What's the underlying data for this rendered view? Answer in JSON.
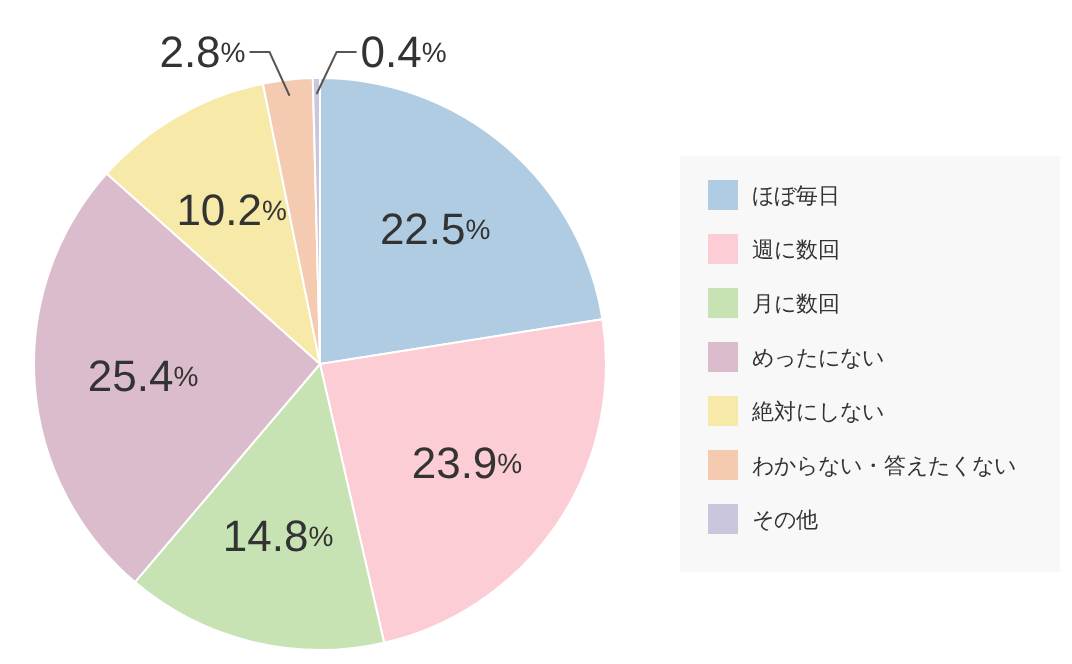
{
  "chart_data": {
    "type": "pie",
    "categories": [
      "ほぼ毎日",
      "週に数回",
      "月に数回",
      "めったにない",
      "絶対にしない",
      "わからない・答えたくない",
      "その他"
    ],
    "values": [
      22.5,
      23.9,
      14.8,
      25.4,
      10.2,
      2.8,
      0.4
    ],
    "colors": [
      "#b0cce2",
      "#fdcdd6",
      "#c8e3b3",
      "#dbbccc",
      "#f7e9a7",
      "#f4cbb1",
      "#cac6de"
    ],
    "value_labels": [
      "22.5%",
      "23.9%",
      "14.8%",
      "25.4%",
      "10.2%",
      "2.8%",
      "0.4%"
    ],
    "legend": "right"
  }
}
